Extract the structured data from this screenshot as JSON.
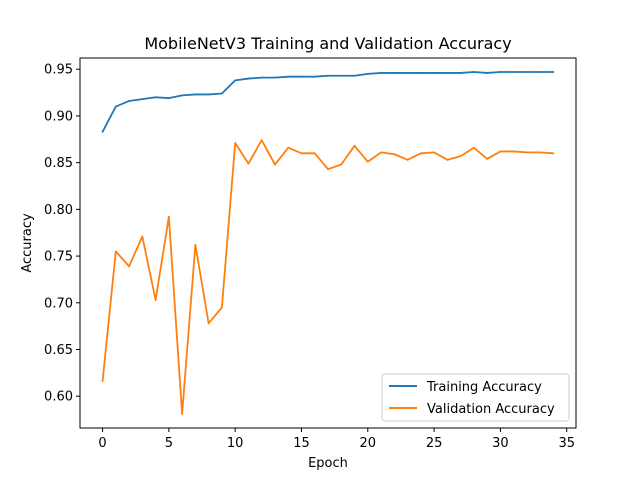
{
  "chart_data": {
    "type": "line",
    "title": "MobileNetV3 Training and Validation Accuracy",
    "xlabel": "Epoch",
    "ylabel": "Accuracy",
    "xlim": [
      -1.7,
      35.7
    ],
    "ylim": [
      0.566,
      0.962
    ],
    "xticks": [
      0,
      5,
      10,
      15,
      20,
      25,
      30,
      35
    ],
    "yticks": [
      0.6,
      0.65,
      0.7,
      0.75,
      0.8,
      0.85,
      0.9,
      0.95
    ],
    "ytick_labels": [
      "0.60",
      "0.65",
      "0.70",
      "0.75",
      "0.80",
      "0.85",
      "0.90",
      "0.95"
    ],
    "grid": false,
    "legend_position": "lower-right",
    "x": [
      0,
      1,
      2,
      3,
      4,
      5,
      6,
      7,
      8,
      9,
      10,
      11,
      12,
      13,
      14,
      15,
      16,
      17,
      18,
      19,
      20,
      21,
      22,
      23,
      24,
      25,
      26,
      27,
      28,
      29,
      30,
      31,
      32,
      33,
      34
    ],
    "series": [
      {
        "name": "Training Accuracy",
        "color": "#1f77b4",
        "values": [
          0.883,
          0.91,
          0.916,
          0.918,
          0.92,
          0.919,
          0.922,
          0.923,
          0.923,
          0.924,
          0.938,
          0.94,
          0.941,
          0.941,
          0.942,
          0.942,
          0.942,
          0.943,
          0.943,
          0.943,
          0.945,
          0.946,
          0.946,
          0.946,
          0.946,
          0.946,
          0.946,
          0.946,
          0.947,
          0.946,
          0.947,
          0.947,
          0.947,
          0.947,
          0.947
        ]
      },
      {
        "name": "Validation Accuracy",
        "color": "#ff7f0e",
        "values": [
          0.616,
          0.755,
          0.739,
          0.771,
          0.703,
          0.792,
          0.581,
          0.762,
          0.678,
          0.695,
          0.871,
          0.849,
          0.874,
          0.848,
          0.866,
          0.86,
          0.86,
          0.843,
          0.848,
          0.868,
          0.851,
          0.861,
          0.859,
          0.853,
          0.86,
          0.861,
          0.853,
          0.857,
          0.866,
          0.854,
          0.862,
          0.862,
          0.861,
          0.861,
          0.86
        ]
      }
    ]
  }
}
